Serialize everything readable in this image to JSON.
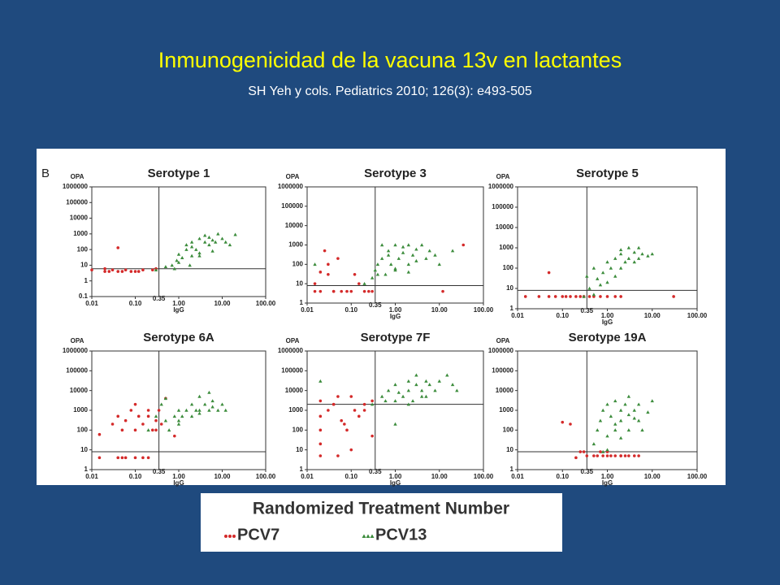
{
  "title": "Inmunogenicidad  de la vacuna 13v en lactantes",
  "subtitle": "SH Yeh y cols. Pediatrics 2010; 126(3): e493-505",
  "panel_label": "B",
  "legend_title": "Randomized Treatment Number",
  "chart_data": [
    {
      "type": "scatter",
      "title": "Serotype 1",
      "xlabel": "IgG",
      "ylabel": "OPA",
      "xscale": "log",
      "yscale": "log",
      "xlim": [
        0.01,
        100
      ],
      "ylim": [
        0.1,
        1000000
      ],
      "xticks": [
        {
          "value": 0.01,
          "label": "0.01"
        },
        {
          "value": 0.1,
          "label": "0.10"
        },
        {
          "value": 1,
          "label": "1.00"
        },
        {
          "value": 10,
          "label": "10.00"
        },
        {
          "value": 100,
          "label": "100.00"
        }
      ],
      "yticks": [
        0.1,
        1,
        10,
        100,
        1000,
        10000,
        100000,
        1000000
      ],
      "vline": 0.35,
      "hline": 6,
      "series": [
        {
          "name": "PCV7",
          "color": "#d42a2a",
          "marker": "circle",
          "x": [
            0.01,
            0.02,
            0.025,
            0.03,
            0.04,
            0.05,
            0.04,
            0.08,
            0.1,
            0.12,
            0.15,
            0.25,
            0.3,
            0.02,
            0.06
          ],
          "values": [
            5,
            4,
            4,
            5,
            4,
            4,
            130,
            4,
            4,
            4,
            5,
            5,
            6,
            6,
            5
          ]
        },
        {
          "name": "PCV13",
          "color": "#3c8c3c",
          "marker": "triangle",
          "x": [
            0.3,
            0.5,
            0.7,
            0.9,
            1.0,
            1.2,
            1.5,
            1.5,
            2,
            2,
            2.5,
            3,
            3,
            4,
            4,
            5,
            5,
            6,
            7,
            8,
            10,
            12,
            15,
            20,
            1,
            0.8,
            2,
            3,
            6,
            1.8
          ],
          "values": [
            5,
            8,
            10,
            20,
            50,
            30,
            100,
            200,
            40,
            300,
            100,
            500,
            60,
            300,
            800,
            200,
            600,
            400,
            300,
            1000,
            500,
            300,
            200,
            900,
            15,
            6,
            150,
            40,
            80,
            10
          ]
        }
      ]
    },
    {
      "type": "scatter",
      "title": "Serotype 3",
      "xlabel": "IgG",
      "ylabel": "OPA",
      "xscale": "log",
      "yscale": "log",
      "xlim": [
        0.01,
        100
      ],
      "ylim": [
        1,
        1000000
      ],
      "xticks": [
        {
          "value": 0.01,
          "label": "0.01"
        },
        {
          "value": 0.1,
          "label": "0.10"
        },
        {
          "value": 1,
          "label": "1.00"
        },
        {
          "value": 10,
          "label": "10.00"
        },
        {
          "value": 100,
          "label": "100.00"
        }
      ],
      "yticks": [
        1,
        10,
        100,
        1000,
        10000,
        100000,
        1000000
      ],
      "vline": 0.35,
      "hline": 8,
      "series": [
        {
          "name": "PCV7",
          "color": "#d42a2a",
          "marker": "circle",
          "x": [
            0.015,
            0.015,
            0.02,
            0.025,
            0.03,
            0.04,
            0.05,
            0.06,
            0.08,
            0.1,
            0.15,
            0.2,
            0.25,
            0.3,
            0.03,
            0.04,
            0.12,
            12,
            35,
            0.02
          ],
          "values": [
            4,
            10,
            4,
            500,
            30,
            4,
            200,
            4,
            4,
            4,
            10,
            4,
            4,
            4,
            100,
            4,
            30,
            4,
            1000,
            40
          ]
        },
        {
          "name": "PCV13",
          "color": "#3c8c3c",
          "marker": "triangle",
          "x": [
            0.015,
            0.2,
            0.3,
            0.35,
            0.4,
            0.5,
            0.6,
            0.7,
            0.8,
            1,
            1,
            1.2,
            1.5,
            2,
            2,
            2.5,
            3,
            4,
            5,
            6,
            8,
            10,
            0.5,
            0.7,
            1,
            1.5,
            3,
            20,
            0.4,
            2
          ],
          "values": [
            100,
            10,
            20,
            50,
            100,
            200,
            30,
            500,
            100,
            1000,
            60,
            200,
            400,
            1000,
            100,
            300,
            600,
            1000,
            200,
            500,
            300,
            100,
            1000,
            300,
            50,
            800,
            150,
            500,
            30,
            40
          ]
        }
      ]
    },
    {
      "type": "scatter",
      "title": "Serotype 5",
      "xlabel": "IgG",
      "ylabel": "OPA",
      "xscale": "log",
      "yscale": "log",
      "xlim": [
        0.01,
        100
      ],
      "ylim": [
        1,
        1000000
      ],
      "xticks": [
        {
          "value": 0.01,
          "label": "0.01"
        },
        {
          "value": 0.1,
          "label": "0.10"
        },
        {
          "value": 1,
          "label": "1.00"
        },
        {
          "value": 10,
          "label": "10.00"
        },
        {
          "value": 100,
          "label": "100.00"
        }
      ],
      "yticks": [
        1,
        10,
        100,
        1000,
        10000,
        100000,
        1000000
      ],
      "vline": 0.35,
      "hline": 8,
      "series": [
        {
          "name": "PCV7",
          "color": "#d42a2a",
          "marker": "circle",
          "x": [
            0.015,
            0.03,
            0.05,
            0.07,
            0.1,
            0.15,
            0.2,
            0.3,
            0.4,
            0.5,
            0.7,
            1,
            1.5,
            2,
            0.05,
            0.25,
            30,
            0.12
          ],
          "values": [
            4,
            4,
            4,
            4,
            4,
            4,
            4,
            4,
            4,
            4,
            4,
            4,
            4,
            4,
            60,
            4,
            4,
            4
          ]
        },
        {
          "name": "PCV13",
          "color": "#3c8c3c",
          "marker": "triangle",
          "x": [
            0.3,
            0.35,
            0.4,
            0.5,
            0.6,
            0.8,
            1,
            1,
            1.2,
            1.5,
            2,
            2,
            2.5,
            3,
            3,
            4,
            5,
            5,
            6,
            8,
            10,
            0.7,
            1.5,
            4,
            0.5,
            2
          ],
          "values": [
            4,
            40,
            10,
            100,
            30,
            60,
            200,
            20,
            100,
            300,
            100,
            500,
            200,
            300,
            1000,
            600,
            1000,
            300,
            500,
            400,
            500,
            15,
            40,
            200,
            5,
            800
          ]
        }
      ]
    },
    {
      "type": "scatter",
      "title": "Serotype 6A",
      "xlabel": "IgG",
      "ylabel": "OPA",
      "xscale": "log",
      "yscale": "log",
      "xlim": [
        0.01,
        100
      ],
      "ylim": [
        1,
        1000000
      ],
      "xticks": [
        {
          "value": 0.01,
          "label": "0.01"
        },
        {
          "value": 0.1,
          "label": "0.10"
        },
        {
          "value": 1,
          "label": "1.00"
        },
        {
          "value": 10,
          "label": "10.00"
        },
        {
          "value": 100,
          "label": "100.00"
        }
      ],
      "yticks": [
        1,
        10,
        100,
        1000,
        10000,
        100000,
        1000000
      ],
      "vline": 0.35,
      "hline": 8,
      "series": [
        {
          "name": "PCV7",
          "color": "#d42a2a",
          "marker": "circle",
          "x": [
            0.015,
            0.015,
            0.03,
            0.04,
            0.05,
            0.06,
            0.08,
            0.1,
            0.12,
            0.15,
            0.2,
            0.25,
            0.3,
            0.4,
            0.5,
            0.04,
            0.06,
            0.1,
            0.15,
            0.2,
            0.3,
            0.8,
            0.1,
            0.2,
            0.35,
            0.05
          ],
          "values": [
            4,
            60,
            200,
            500,
            100,
            300,
            1000,
            2000,
            500,
            200,
            1000,
            100,
            300,
            200,
            4000,
            4,
            4,
            4,
            4,
            4,
            100,
            50,
            100,
            500,
            1000,
            4
          ]
        },
        {
          "name": "PCV13",
          "color": "#3c8c3c",
          "marker": "triangle",
          "x": [
            0.2,
            0.3,
            0.4,
            0.5,
            0.6,
            0.8,
            1,
            1,
            1.2,
            1.5,
            2,
            2,
            2.5,
            3,
            3,
            4,
            5,
            5,
            6,
            8,
            10,
            12,
            0.5,
            1,
            3,
            6
          ],
          "values": [
            100,
            500,
            2000,
            300,
            100,
            500,
            1000,
            200,
            500,
            1000,
            2000,
            500,
            1000,
            1000,
            5000,
            2000,
            1000,
            8000,
            3000,
            1000,
            2000,
            1000,
            4000,
            300,
            700,
            1500
          ]
        }
      ]
    },
    {
      "type": "scatter",
      "title": "Serotype 7F",
      "xlabel": "IgG",
      "ylabel": "OPA",
      "xscale": "log",
      "yscale": "log",
      "xlim": [
        0.01,
        100
      ],
      "ylim": [
        1,
        1000000
      ],
      "xticks": [
        {
          "value": 0.01,
          "label": "0.01"
        },
        {
          "value": 0.1,
          "label": "0.10"
        },
        {
          "value": 1,
          "label": "1.00"
        },
        {
          "value": 10,
          "label": "10.00"
        },
        {
          "value": 100,
          "label": "100.00"
        }
      ],
      "yticks": [
        1,
        10,
        100,
        1000,
        10000,
        100000,
        1000000
      ],
      "vline": 0.35,
      "hline": 2000,
      "series": [
        {
          "name": "PCV7",
          "color": "#d42a2a",
          "marker": "circle",
          "x": [
            0.02,
            0.02,
            0.02,
            0.02,
            0.02,
            0.03,
            0.04,
            0.05,
            0.06,
            0.08,
            0.1,
            0.12,
            0.15,
            0.2,
            0.3,
            0.05,
            0.1,
            0.07,
            0.04,
            0.2,
            0.3
          ],
          "values": [
            5,
            20,
            100,
            500,
            3000,
            1000,
            2000,
            5000,
            300,
            100,
            5000,
            1000,
            500,
            2000,
            50,
            5,
            10,
            200,
            2000,
            1000,
            3000
          ]
        },
        {
          "name": "PCV13",
          "color": "#3c8c3c",
          "marker": "triangle",
          "x": [
            0.02,
            0.3,
            0.5,
            0.7,
            1,
            1,
            1.2,
            1.5,
            2,
            2,
            2.5,
            3,
            3,
            4,
            5,
            5,
            6,
            8,
            10,
            15,
            20,
            25,
            1,
            2,
            4,
            0.6
          ],
          "values": [
            30000,
            2000,
            5000,
            10000,
            3000,
            20000,
            8000,
            5000,
            30000,
            10000,
            3000,
            20000,
            60000,
            10000,
            30000,
            5000,
            20000,
            10000,
            30000,
            60000,
            20000,
            10000,
            200,
            2000,
            5000,
            3000
          ]
        }
      ]
    },
    {
      "type": "scatter",
      "title": "Serotype 19A",
      "xlabel": "IgG",
      "ylabel": "OPA",
      "xscale": "log",
      "yscale": "log",
      "xlim": [
        0.01,
        100
      ],
      "ylim": [
        1,
        1000000
      ],
      "xticks": [
        {
          "value": 0.01,
          "label": "0.01"
        },
        {
          "value": 0.1,
          "label": "0.10"
        },
        {
          "value": 1,
          "label": "1.00"
        },
        {
          "value": 10,
          "label": "10.00"
        },
        {
          "value": 100,
          "label": "100.00"
        }
      ],
      "yticks": [
        1,
        10,
        100,
        1000,
        10000,
        100000,
        1000000
      ],
      "vline": 0.35,
      "hline": 8,
      "series": [
        {
          "name": "PCV7",
          "color": "#d42a2a",
          "marker": "circle",
          "x": [
            0.1,
            0.15,
            0.2,
            0.3,
            0.35,
            0.5,
            0.6,
            0.8,
            1,
            1.2,
            1.5,
            2,
            2.5,
            3,
            4,
            5,
            0.7,
            1,
            2,
            0.25
          ],
          "values": [
            250,
            200,
            4,
            8,
            5,
            5,
            5,
            5,
            5,
            5,
            5,
            5,
            5,
            5,
            5,
            5,
            8,
            8,
            5,
            8
          ]
        },
        {
          "name": "PCV13",
          "color": "#3c8c3c",
          "marker": "triangle",
          "x": [
            0.5,
            0.6,
            0.7,
            0.8,
            1,
            1,
            1.2,
            1.5,
            1.5,
            2,
            2,
            2.5,
            3,
            3,
            4,
            5,
            5,
            6,
            8,
            10,
            1,
            2,
            3,
            0.8,
            1.5,
            4
          ],
          "values": [
            20,
            100,
            300,
            1000,
            50,
            2000,
            500,
            100,
            3000,
            300,
            1000,
            2000,
            100,
            600,
            1000,
            300,
            2000,
            100,
            800,
            3000,
            10,
            40,
            5000,
            8,
            200,
            400
          ]
        }
      ]
    }
  ]
}
